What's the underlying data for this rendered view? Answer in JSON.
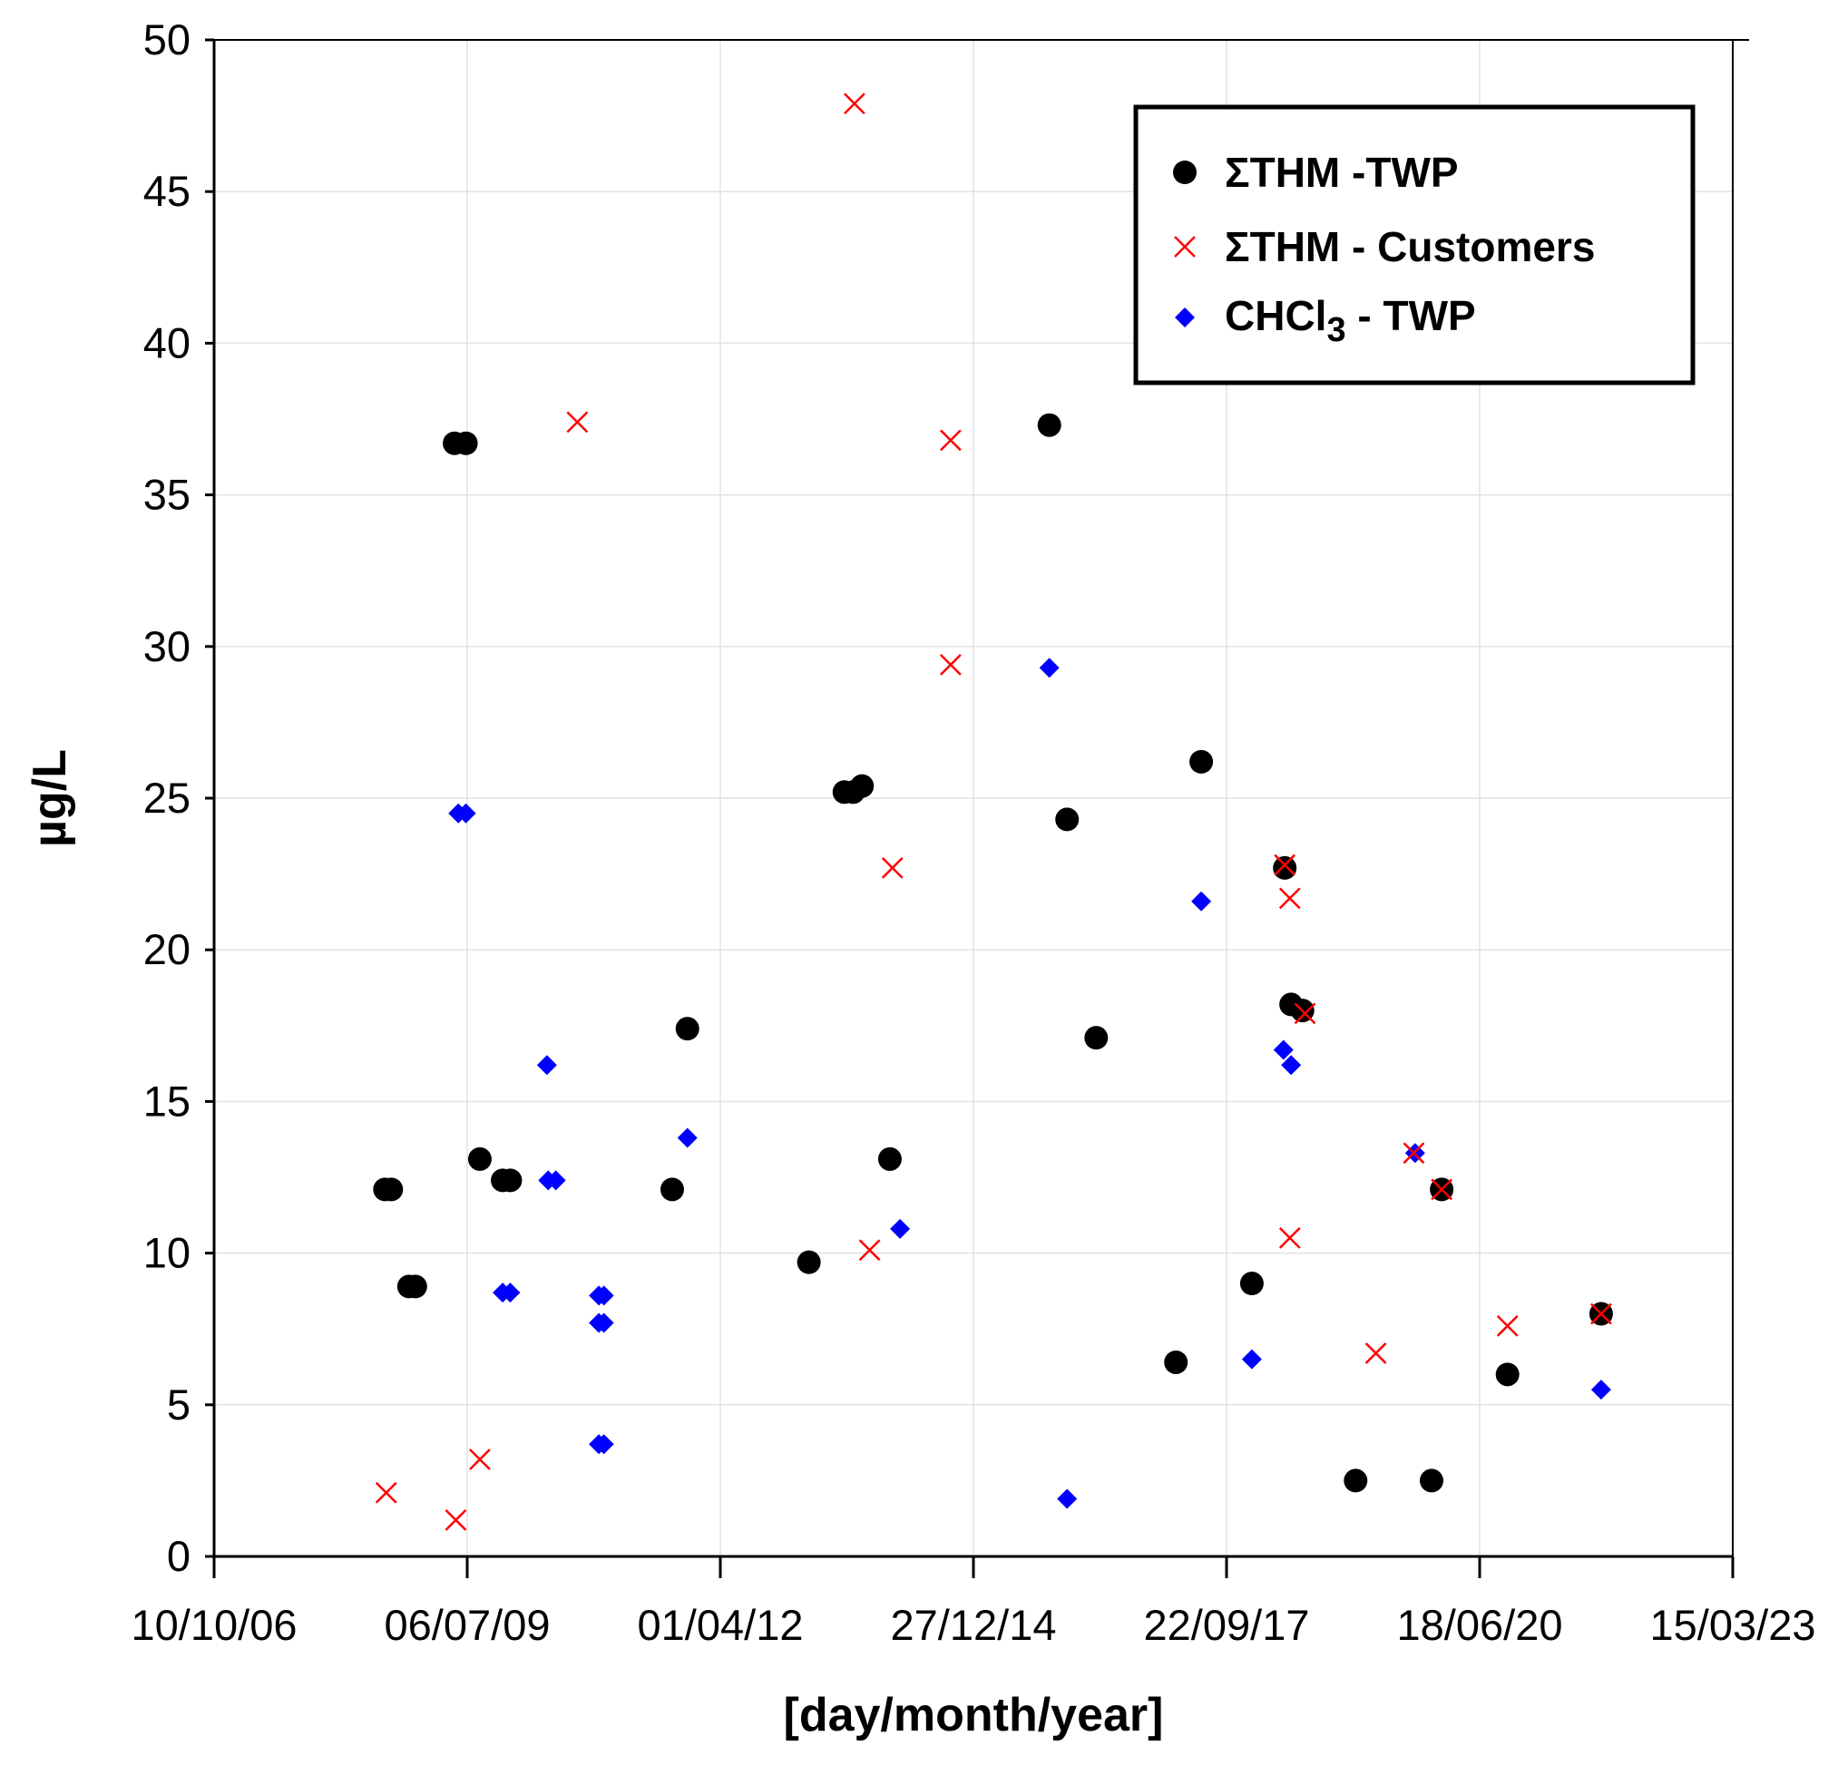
{
  "chart_data": {
    "type": "scatter",
    "title": "",
    "xlabel": "[day/month/year]",
    "ylabel": "µg/L",
    "xlim": [
      0,
      6000
    ],
    "ylim": [
      0,
      50
    ],
    "x_unit": "days since 10/10/06",
    "x_ticks": [
      {
        "value": 0,
        "label": "10/10/06"
      },
      {
        "value": 1000,
        "label": "06/07/09"
      },
      {
        "value": 2000,
        "label": "01/04/12"
      },
      {
        "value": 3000,
        "label": "27/12/14"
      },
      {
        "value": 4000,
        "label": "22/09/17"
      },
      {
        "value": 5000,
        "label": "18/06/20"
      },
      {
        "value": 6000,
        "label": "15/03/23"
      }
    ],
    "y_ticks": [
      0,
      5,
      10,
      15,
      20,
      25,
      30,
      35,
      40,
      45,
      50
    ],
    "grid": true,
    "legend_position": "top-right",
    "series": [
      {
        "name": "ΣTHM -TWP",
        "marker": "circle",
        "color": "#000000",
        "points": [
          [
            675,
            12.1
          ],
          [
            700,
            12.1
          ],
          [
            770,
            8.9
          ],
          [
            795,
            8.9
          ],
          [
            950,
            36.7
          ],
          [
            995,
            36.7
          ],
          [
            1050,
            13.1
          ],
          [
            1140,
            12.4
          ],
          [
            1170,
            12.4
          ],
          [
            1810,
            12.1
          ],
          [
            1870,
            17.4
          ],
          [
            2350,
            9.7
          ],
          [
            2490,
            25.2
          ],
          [
            2525,
            25.2
          ],
          [
            2560,
            25.4
          ],
          [
            2670,
            13.1
          ],
          [
            3300,
            37.3
          ],
          [
            3370,
            24.3
          ],
          [
            3485,
            17.1
          ],
          [
            3800,
            6.4
          ],
          [
            3900,
            26.2
          ],
          [
            4100,
            9.0
          ],
          [
            4230,
            22.7
          ],
          [
            4255,
            18.2
          ],
          [
            4300,
            18.0
          ],
          [
            4510,
            2.5
          ],
          [
            4810,
            2.5
          ],
          [
            4850,
            12.1
          ],
          [
            5110,
            6.0
          ],
          [
            5480,
            8.0
          ]
        ]
      },
      {
        "name": "ΣTHM - Customers",
        "subscript": "",
        "marker": "x",
        "color": "#ff0000",
        "points": [
          [
            680,
            2.1
          ],
          [
            955,
            1.2
          ],
          [
            1050,
            3.2
          ],
          [
            1435,
            37.4
          ],
          [
            2530,
            47.9
          ],
          [
            2590,
            10.1
          ],
          [
            2680,
            22.7
          ],
          [
            2910,
            36.8
          ],
          [
            2910,
            29.4
          ],
          [
            4230,
            22.8
          ],
          [
            4250,
            21.7
          ],
          [
            4250,
            10.5
          ],
          [
            4310,
            17.9
          ],
          [
            4590,
            6.7
          ],
          [
            4740,
            13.3
          ],
          [
            4850,
            12.1
          ],
          [
            5110,
            7.6
          ],
          [
            5480,
            8.0
          ]
        ]
      },
      {
        "name": "CHCl",
        "name_subscript": "3",
        "name_suffix": " - TWP",
        "marker": "diamond",
        "color": "#0000ff",
        "points": [
          [
            965,
            24.5
          ],
          [
            995,
            24.5
          ],
          [
            1140,
            8.7
          ],
          [
            1170,
            8.7
          ],
          [
            1315,
            16.2
          ],
          [
            1320,
            12.4
          ],
          [
            1350,
            12.4
          ],
          [
            1520,
            8.6
          ],
          [
            1540,
            8.6
          ],
          [
            1520,
            7.7
          ],
          [
            1540,
            7.7
          ],
          [
            1520,
            3.7
          ],
          [
            1540,
            3.7
          ],
          [
            1870,
            13.8
          ],
          [
            2710,
            10.8
          ],
          [
            3300,
            29.3
          ],
          [
            3370,
            1.9
          ],
          [
            3900,
            21.6
          ],
          [
            4100,
            6.5
          ],
          [
            4225,
            16.7
          ],
          [
            4255,
            16.2
          ],
          [
            4745,
            13.3
          ],
          [
            5480,
            5.5
          ]
        ]
      }
    ]
  }
}
